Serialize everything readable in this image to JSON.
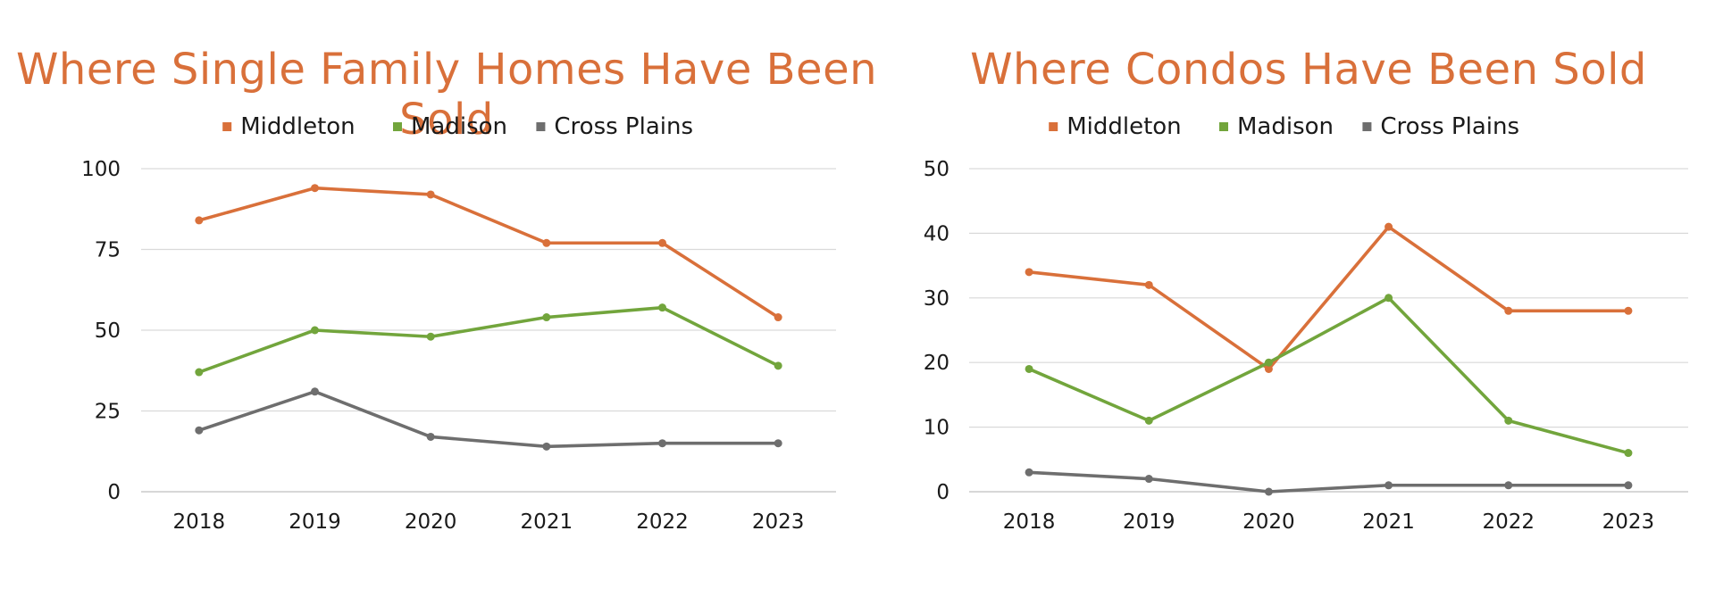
{
  "colors": {
    "middleton": "#d9703a",
    "madison": "#72a53c",
    "cross_plains": "#6e6e6e",
    "grid": "#d9d9d9",
    "title": "#d9703a"
  },
  "chart_data": [
    {
      "type": "line",
      "title": "Where Single Family Homes Have Been Sold",
      "xlabel": "",
      "ylabel": "",
      "categories": [
        "2018",
        "2019",
        "2020",
        "2021",
        "2022",
        "2023"
      ],
      "ylim": [
        0,
        100
      ],
      "yticks": [
        0,
        25,
        50,
        75,
        100
      ],
      "grid": true,
      "legend": "top-center",
      "series": [
        {
          "name": "Middleton",
          "color": "#d9703a",
          "values": [
            84,
            94,
            92,
            77,
            77,
            54
          ]
        },
        {
          "name": "Madison",
          "color": "#72a53c",
          "values": [
            37,
            50,
            48,
            54,
            57,
            39
          ]
        },
        {
          "name": "Cross Plains",
          "color": "#6e6e6e",
          "values": [
            19,
            31,
            17,
            14,
            15,
            15
          ]
        }
      ]
    },
    {
      "type": "line",
      "title": "Where Condos Have Been Sold",
      "xlabel": "",
      "ylabel": "",
      "categories": [
        "2018",
        "2019",
        "2020",
        "2021",
        "2022",
        "2023"
      ],
      "ylim": [
        0,
        50
      ],
      "yticks": [
        0,
        10,
        20,
        30,
        40,
        50
      ],
      "grid": true,
      "legend": "top-center",
      "series": [
        {
          "name": "Middleton",
          "color": "#d9703a",
          "values": [
            34,
            32,
            19,
            41,
            28,
            28
          ]
        },
        {
          "name": "Madison",
          "color": "#72a53c",
          "values": [
            19,
            11,
            20,
            30,
            11,
            6
          ]
        },
        {
          "name": "Cross Plains",
          "color": "#6e6e6e",
          "values": [
            3,
            2,
            0,
            1,
            1,
            1
          ]
        }
      ]
    }
  ]
}
